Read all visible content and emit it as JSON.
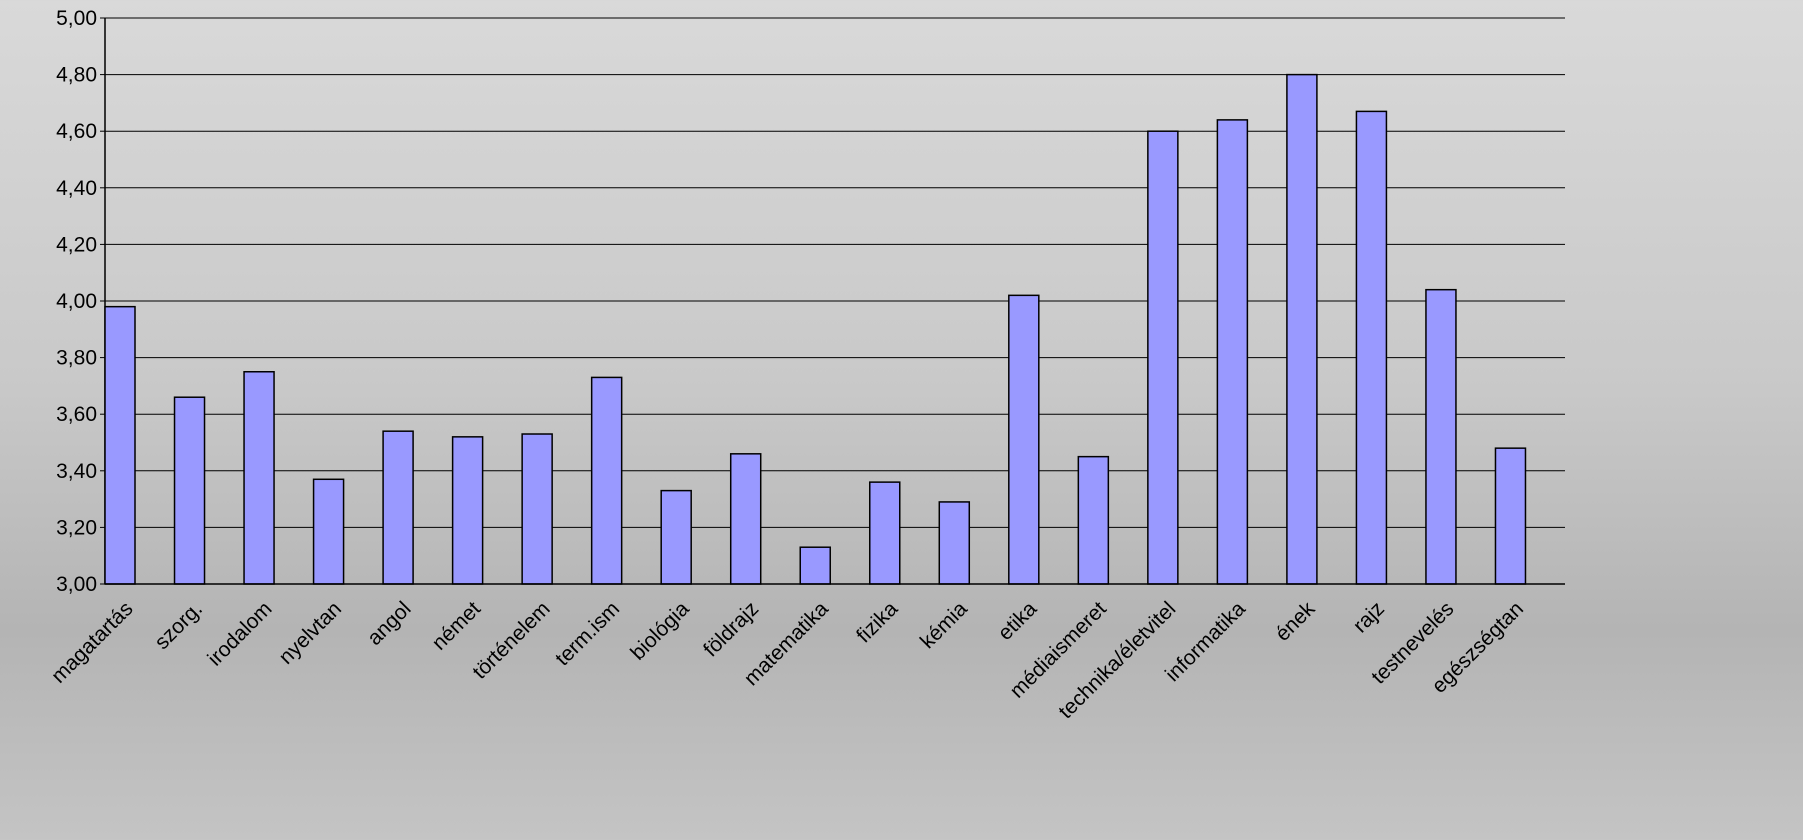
{
  "chart_data": {
    "type": "bar",
    "categories": [
      "magatartás",
      "szorg.",
      "irodalom",
      "nyelvtan",
      "angol",
      "német",
      "történelem",
      "term.ism",
      "biológia",
      "földrajz",
      "matematika",
      "fizika",
      "kémia",
      "etika",
      "médiaismeret",
      "technika/életvitel",
      "informatika",
      "ének",
      "rajz",
      "testnevelés",
      "egészségtan"
    ],
    "values": [
      3.98,
      3.66,
      3.75,
      3.37,
      3.54,
      3.52,
      3.53,
      3.73,
      3.33,
      3.46,
      3.13,
      3.36,
      3.29,
      4.02,
      3.45,
      4.6,
      4.64,
      4.8,
      4.67,
      4.04,
      3.48
    ],
    "color": "#9999ff",
    "ylim": [
      3,
      5
    ],
    "yticks": [
      {
        "value": 3,
        "label": "3,00"
      },
      {
        "value": 3.2,
        "label": "3,20"
      },
      {
        "value": 3.4,
        "label": "3,40"
      },
      {
        "value": 3.6,
        "label": "3,60"
      },
      {
        "value": 3.8,
        "label": "3,80"
      },
      {
        "value": 4,
        "label": "4,00"
      },
      {
        "value": 4.2,
        "label": "4,20"
      },
      {
        "value": 4.4,
        "label": "4,40"
      },
      {
        "value": 4.6,
        "label": "4,60"
      },
      {
        "value": 4.8,
        "label": "4,80"
      },
      {
        "value": 5,
        "label": "5,00"
      }
    ],
    "grid": true
  }
}
